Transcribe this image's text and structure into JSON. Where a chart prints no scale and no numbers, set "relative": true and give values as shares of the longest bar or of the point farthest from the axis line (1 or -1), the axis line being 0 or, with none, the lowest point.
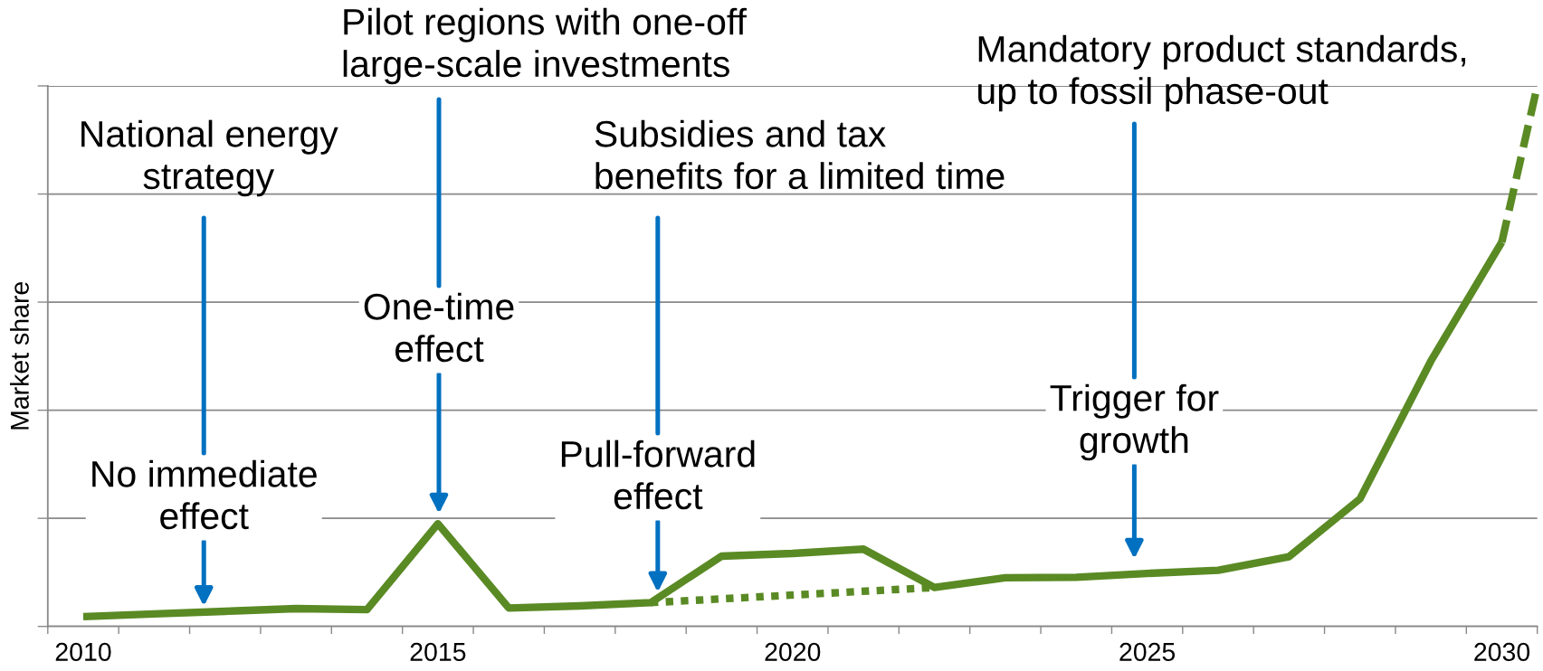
{
  "chart_data": {
    "type": "line",
    "relative": true,
    "ylabel": "Market share",
    "grid": "y",
    "xlim": [
      2009.5,
      2030.5
    ],
    "xticks": [
      {
        "value": 2009.5,
        "label": null
      },
      2010,
      {
        "value": 2010.5,
        "label": null
      },
      {
        "value": 2011.5,
        "label": null
      },
      {
        "value": 2012.5,
        "label": null
      },
      {
        "value": 2013.5,
        "label": null
      },
      {
        "value": 2014.5,
        "label": null
      },
      2015,
      {
        "value": 2015.5,
        "label": null
      },
      {
        "value": 2016.5,
        "label": null
      },
      {
        "value": 2017.5,
        "label": null
      },
      {
        "value": 2018.5,
        "label": null
      },
      {
        "value": 2019.5,
        "label": null
      },
      2020,
      {
        "value": 2020.5,
        "label": null
      },
      {
        "value": 2021.5,
        "label": null
      },
      {
        "value": 2022.5,
        "label": null
      },
      {
        "value": 2023.5,
        "label": null
      },
      {
        "value": 2024.5,
        "label": null
      },
      2025,
      {
        "value": 2025.5,
        "label": null
      },
      {
        "value": 2026.5,
        "label": null
      },
      {
        "value": 2027.5,
        "label": null
      },
      {
        "value": 2028.5,
        "label": null
      },
      {
        "value": 2029.5,
        "label": null
      },
      2030,
      {
        "value": 2030.5,
        "label": null
      }
    ],
    "series": [
      {
        "color": "#5a8a24",
        "x": [
          2010,
          2011,
          2012,
          2013,
          2014,
          2015,
          2016,
          2017,
          2018,
          2019,
          2020,
          2021,
          2022,
          2023,
          2024,
          2025,
          2026,
          2027,
          2028,
          2029,
          2030
        ],
        "values": [
          0.018,
          0.023,
          0.028,
          0.033,
          0.031,
          0.19,
          0.034,
          0.038,
          0.044,
          0.13,
          0.135,
          0.143,
          0.072,
          0.09,
          0.091,
          0.098,
          0.104,
          0.129,
          0.236,
          0.491,
          0.711
        ]
      },
      {
        "color": "#5a8a24",
        "line_style": "dotted",
        "x": [
          2018,
          2022
        ],
        "values": [
          0.044,
          0.072
        ]
      },
      {
        "color": "#5a8a24",
        "line_style": "dashed",
        "x": [
          2030,
          2030.5
        ],
        "values": [
          0.711,
          1
        ]
      }
    ],
    "annotations": [
      "National energy\nstrategy",
      {
        "text": "No immediate\neffect",
        "x": 2011.7,
        "y": 0.027
      },
      "Pilot regions with one-off\nlarge-scale investments",
      "One-time\neffect",
      "Subsidies and tax\nbenefits for a limited time",
      {
        "text": "Pull-forward\neffect",
        "x": 2018.1,
        "y": 0.053
      },
      "Mandatory product standards,\nup to fossil phase-out",
      "Trigger for\ngrowth"
    ]
  }
}
